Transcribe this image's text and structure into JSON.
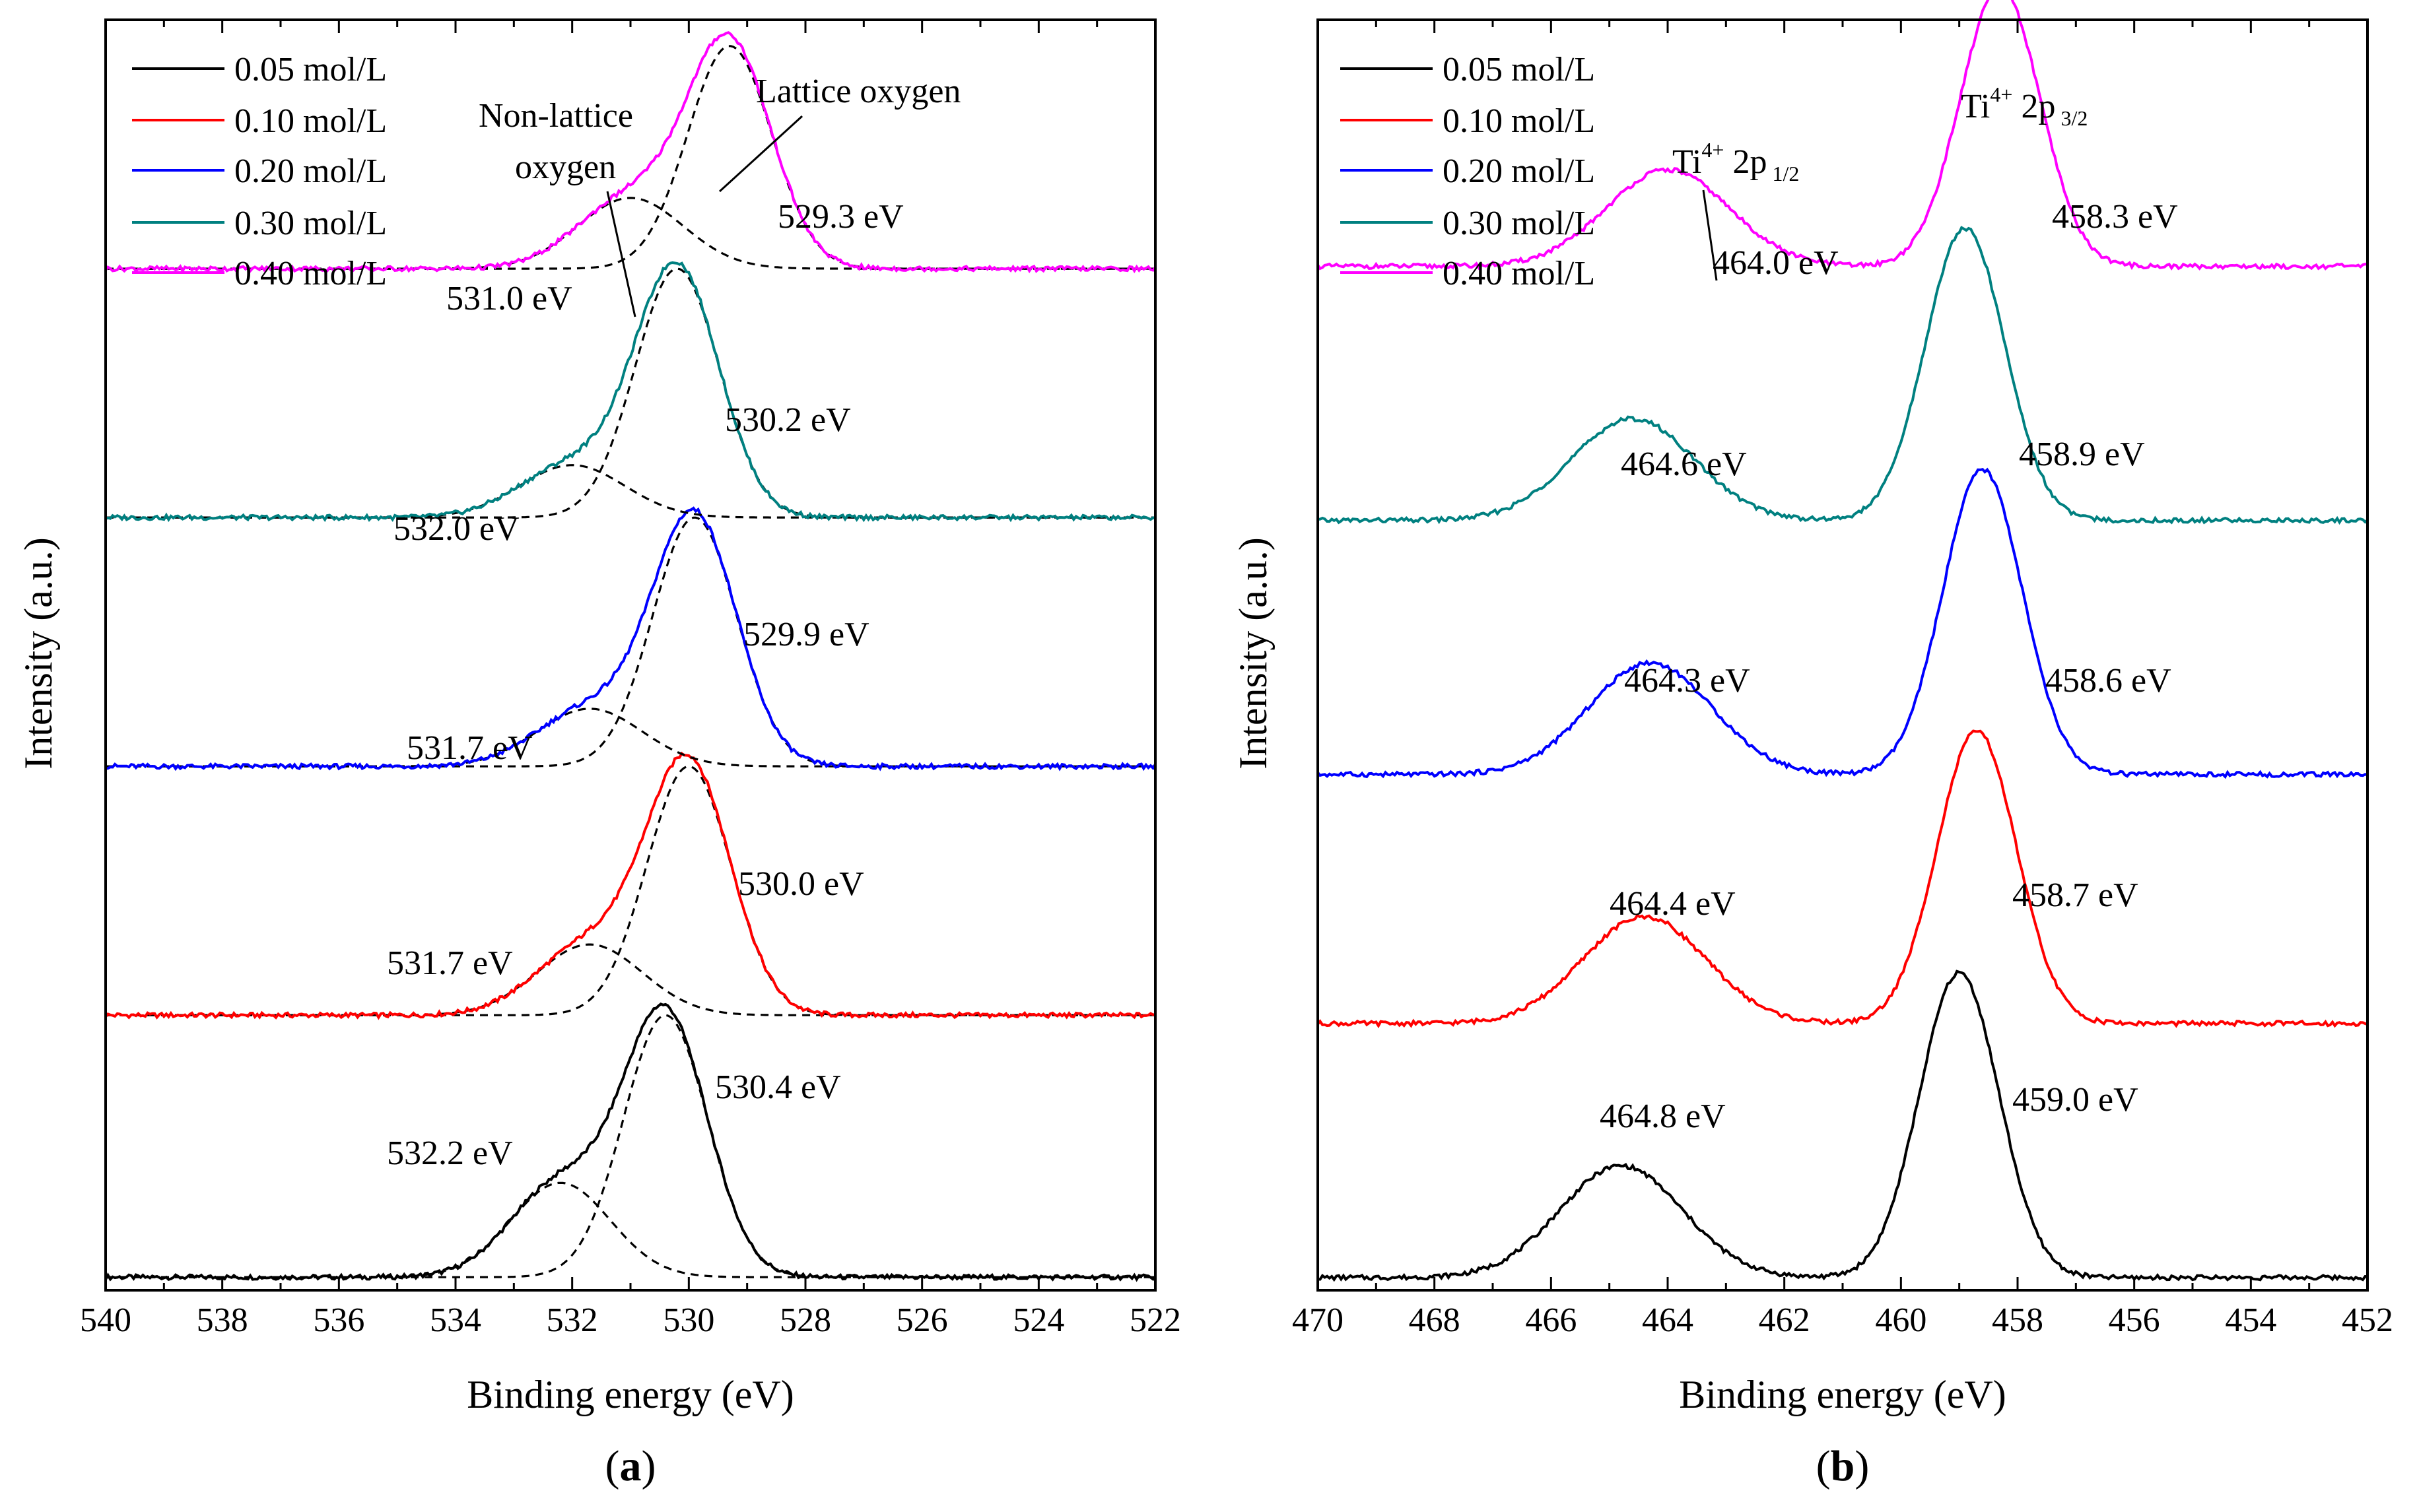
{
  "chart_data": [
    {
      "panel": "a",
      "panel_label": "a",
      "type": "line",
      "xlabel": "Binding energy (eV)",
      "ylabel": "Intensity (a.u.)",
      "xlim": [
        540,
        522
      ],
      "x_ticks": [
        "540",
        "538",
        "536",
        "534",
        "532",
        "530",
        "528",
        "526",
        "524",
        "522"
      ],
      "ylim": [
        -0.05,
        4.8
      ],
      "y_ticks_shown": false,
      "legend": {
        "placement": "top-left",
        "entries": [
          {
            "label": "0.05 mol/L",
            "color": "#000000"
          },
          {
            "label": "0.10 mol/L",
            "color": "#ff0000"
          },
          {
            "label": "0.20 mol/L",
            "color": "#0000ff"
          },
          {
            "label": "0.30 mol/L",
            "color": "#008080"
          },
          {
            "label": "0.40 mol/L",
            "color": "#ff00ff"
          }
        ]
      },
      "series": [
        {
          "name": "0.05 mol/L",
          "color": "#000000",
          "offset": 0.0,
          "peaks": [
            {
              "center": 530.4,
              "height": 1.0,
              "sigma": 0.72
            },
            {
              "center": 532.2,
              "height": 0.36,
              "sigma": 0.85
            }
          ],
          "labels": [
            "530.4 eV",
            "532.2 eV"
          ]
        },
        {
          "name": "0.10 mol/L",
          "color": "#ff0000",
          "offset": 1.0,
          "peaks": [
            {
              "center": 530.0,
              "height": 0.95,
              "sigma": 0.72
            },
            {
              "center": 531.7,
              "height": 0.27,
              "sigma": 0.9
            }
          ],
          "labels": [
            "530.0 eV",
            "531.7 eV"
          ]
        },
        {
          "name": "0.20 mol/L",
          "color": "#0000ff",
          "offset": 1.95,
          "peaks": [
            {
              "center": 529.9,
              "height": 0.95,
              "sigma": 0.72
            },
            {
              "center": 531.7,
              "height": 0.22,
              "sigma": 0.9
            }
          ],
          "labels": [
            "529.9 eV",
            "531.7 eV"
          ]
        },
        {
          "name": "0.30 mol/L",
          "color": "#008080",
          "offset": 2.9,
          "peaks": [
            {
              "center": 530.2,
              "height": 0.95,
              "sigma": 0.72
            },
            {
              "center": 532.0,
              "height": 0.2,
              "sigma": 0.9
            }
          ],
          "labels": [
            "530.2 eV",
            "532.0 eV"
          ]
        },
        {
          "name": "0.40 mol/L",
          "color": "#ff00ff",
          "offset": 3.85,
          "peaks": [
            {
              "center": 529.3,
              "height": 0.85,
              "sigma": 0.72
            },
            {
              "center": 531.0,
              "height": 0.27,
              "sigma": 0.9
            }
          ],
          "labels": [
            "529.3 eV",
            "531.0 eV"
          ]
        }
      ],
      "fit_line_style": "dashed black",
      "annotations": {
        "lattice": "Lattice oxygen",
        "nonlattice_1": "Non-lattice",
        "nonlattice_2": "oxygen"
      }
    },
    {
      "panel": "b",
      "panel_label": "b",
      "type": "line",
      "xlabel": "Binding energy (eV)",
      "ylabel": "Intensity (a.u.)",
      "xlim": [
        470,
        452
      ],
      "x_ticks": [
        "470",
        "468",
        "466",
        "464",
        "462",
        "460",
        "458",
        "456",
        "454",
        "452"
      ],
      "ylim": [
        -0.05,
        4.95
      ],
      "y_ticks_shown": false,
      "legend": {
        "placement": "top-left",
        "entries": [
          {
            "label": "0.05 mol/L",
            "color": "#000000"
          },
          {
            "label": "0.10 mol/L",
            "color": "#ff0000"
          },
          {
            "label": "0.20 mol/L",
            "color": "#0000ff"
          },
          {
            "label": "0.30 mol/L",
            "color": "#008080"
          },
          {
            "label": "0.40 mol/L",
            "color": "#ff00ff"
          }
        ]
      },
      "series": [
        {
          "name": "0.05 mol/L",
          "color": "#000000",
          "offset": 0.0,
          "peaks": [
            {
              "center": 459.0,
              "height": 1.2,
              "sigma": 0.68
            },
            {
              "center": 464.8,
              "height": 0.44,
              "sigma": 1.05
            }
          ],
          "labels": [
            "459.0 eV",
            "464.8 eV"
          ]
        },
        {
          "name": "0.10 mol/L",
          "color": "#ff0000",
          "offset": 1.0,
          "peaks": [
            {
              "center": 458.7,
              "height": 1.15,
              "sigma": 0.68
            },
            {
              "center": 464.4,
              "height": 0.42,
              "sigma": 1.05
            }
          ],
          "labels": [
            "458.7 eV",
            "464.4 eV"
          ]
        },
        {
          "name": "0.20 mol/L",
          "color": "#0000ff",
          "offset": 1.98,
          "peaks": [
            {
              "center": 458.6,
              "height": 1.2,
              "sigma": 0.68
            },
            {
              "center": 464.3,
              "height": 0.44,
              "sigma": 1.05
            }
          ],
          "labels": [
            "458.6 eV",
            "464.3 eV"
          ]
        },
        {
          "name": "0.30 mol/L",
          "color": "#008080",
          "offset": 2.98,
          "peaks": [
            {
              "center": 458.9,
              "height": 1.15,
              "sigma": 0.68
            },
            {
              "center": 464.6,
              "height": 0.4,
              "sigma": 1.05
            }
          ],
          "labels": [
            "458.9 eV",
            "464.6 eV"
          ]
        },
        {
          "name": "0.40 mol/L",
          "color": "#ff00ff",
          "offset": 3.98,
          "peaks": [
            {
              "center": 458.3,
              "height": 1.1,
              "sigma": 0.68
            },
            {
              "center": 464.0,
              "height": 0.38,
              "sigma": 1.05
            }
          ],
          "labels": [
            "458.3 eV",
            "464.0 eV"
          ]
        }
      ],
      "annotations": {
        "ti_half_base": "Ti",
        "ti_half_sup": "4+",
        "ti_half_mid": " 2p",
        "ti_half_sub": "1/2",
        "ti_three_base": "Ti",
        "ti_three_sup": "4+",
        "ti_three_mid": " 2p",
        "ti_three_sub": "3/2"
      }
    }
  ]
}
